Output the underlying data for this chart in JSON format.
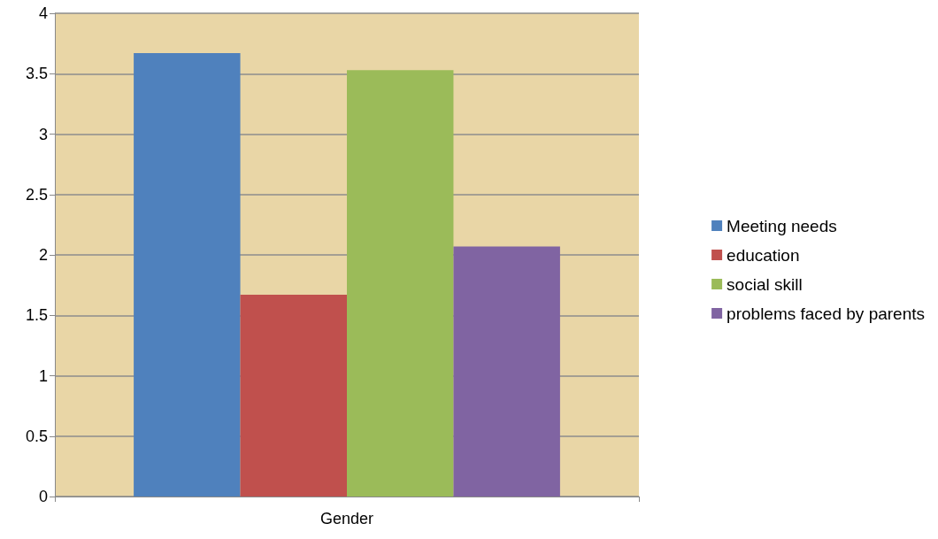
{
  "chart_data": {
    "type": "bar",
    "categories": [
      "Gender"
    ],
    "series": [
      {
        "name": "Meeting needs",
        "color": "#4f81bd",
        "values": [
          3.67
        ]
      },
      {
        "name": "education",
        "color": "#c0504d",
        "values": [
          1.67
        ]
      },
      {
        "name": "social skill",
        "color": "#9bbb59",
        "values": [
          3.53
        ]
      },
      {
        "name": "problems faced by parents",
        "color": "#8064a2",
        "values": [
          2.07
        ]
      }
    ],
    "ylim": [
      0,
      4
    ],
    "yticks": [
      0,
      0.5,
      1,
      1.5,
      2,
      2.5,
      3,
      3.5,
      4
    ],
    "grid": "y",
    "legend": "right"
  }
}
